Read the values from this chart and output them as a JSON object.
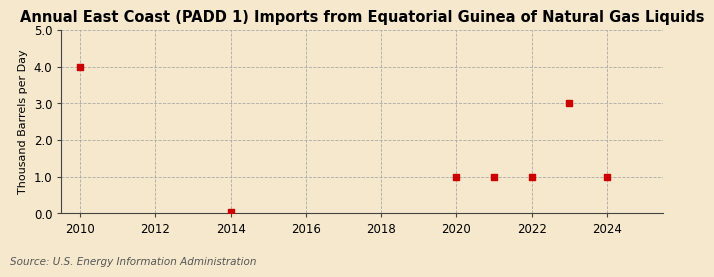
{
  "title": "Annual East Coast (PADD 1) Imports from Equatorial Guinea of Natural Gas Liquids",
  "ylabel": "Thousand Barrels per Day",
  "source": "Source: U.S. Energy Information Administration",
  "background_color": "#f5e8cc",
  "plot_background_color": "#f5e8cc",
  "data_x": [
    2010,
    2014,
    2020,
    2021,
    2022,
    2023,
    2024
  ],
  "data_y": [
    4.0,
    0.03,
    1.0,
    1.0,
    1.0,
    3.0,
    1.0
  ],
  "marker_color": "#cc0000",
  "marker_size": 4,
  "xlim": [
    2009.5,
    2025.5
  ],
  "ylim": [
    0.0,
    5.0
  ],
  "yticks": [
    0.0,
    1.0,
    2.0,
    3.0,
    4.0,
    5.0
  ],
  "xticks": [
    2010,
    2012,
    2014,
    2016,
    2018,
    2020,
    2022,
    2024
  ],
  "grid_color": "#aaaaaa",
  "title_fontsize": 10.5,
  "label_fontsize": 8,
  "tick_fontsize": 8.5,
  "source_fontsize": 7.5
}
